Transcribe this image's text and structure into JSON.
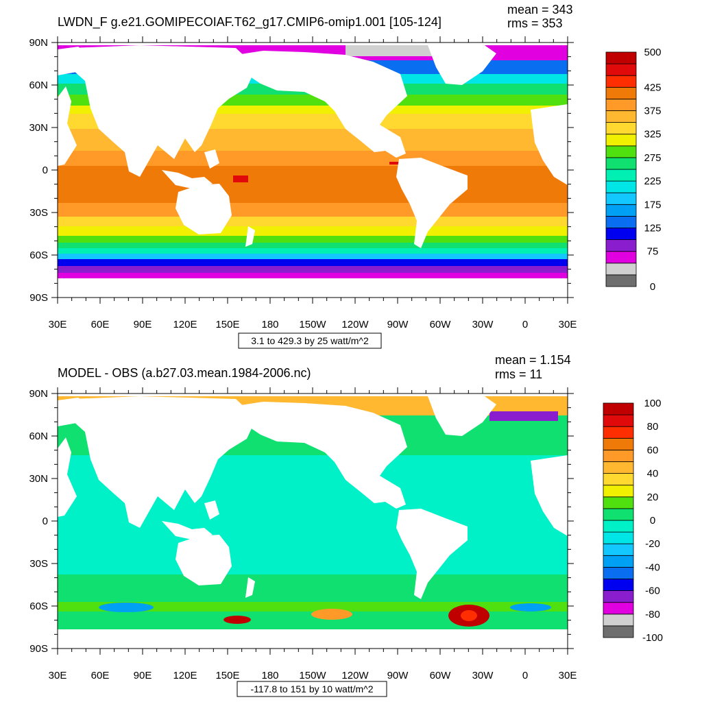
{
  "colors": {
    "ocean_top": [
      "#6e6e6e",
      "#d0d0d0",
      "#e000e0",
      "#8a1ecf",
      "#0000f0",
      "#0a6ef0",
      "#00a0f5",
      "#12c8ff",
      "#00e6e6",
      "#00f0b4",
      "#10e070",
      "#50e010",
      "#f0f000",
      "#ffd830",
      "#ffb830",
      "#ff9a28",
      "#f07a08",
      "#ff2e00",
      "#e00a0a",
      "#c00000"
    ],
    "ocean_bottom": [
      "#6e6e6e",
      "#d0d0d0",
      "#e000e0",
      "#8a1ecf",
      "#0000f0",
      "#0a6ef0",
      "#00a0f5",
      "#12c8ff",
      "#00e6e6",
      "#00f0c8",
      "#10e070",
      "#50e010",
      "#f0f000",
      "#ffd830",
      "#ffb830",
      "#ff9a28",
      "#f07a08",
      "#ff2e00",
      "#e00a0a",
      "#c00000"
    ]
  },
  "panels": [
    {
      "title": "LWDN_F g.e21.GOMIPECOIAF.T62_g17.CMIP6-omip1.001 [105-124]",
      "stats": [
        "mean = 343",
        "rms = 353"
      ],
      "range_note": "3.1 to 429.3 by 25 watt/m^2",
      "lat_ticks": [
        "90N",
        "60N",
        "30N",
        "0",
        "30S",
        "60S",
        "90S"
      ],
      "lon_ticks": [
        "30E",
        "60E",
        "90E",
        "120E",
        "150E",
        "180",
        "150W",
        "120W",
        "90W",
        "60W",
        "30W",
        "0",
        "30E"
      ],
      "colorbar": {
        "labels": [
          "500",
          "425",
          "375",
          "325",
          "275",
          "225",
          "175",
          "125",
          "75",
          "0"
        ],
        "label_positions": [
          20,
          17,
          15,
          13,
          11,
          9,
          7,
          5,
          3,
          0
        ]
      }
    },
    {
      "title": "MODEL - OBS (a.b27.03.mean.1984-2006.nc)",
      "stats": [
        "mean = 1.154",
        "rms = 11"
      ],
      "range_note": "-117.8 to 151 by 10 watt/m^2",
      "lat_ticks": [
        "90N",
        "60N",
        "30N",
        "0",
        "30S",
        "60S",
        "90S"
      ],
      "lon_ticks": [
        "30E",
        "60E",
        "90E",
        "120E",
        "150E",
        "180",
        "150W",
        "120W",
        "90W",
        "60W",
        "30W",
        "0",
        "30E"
      ],
      "colorbar": {
        "labels": [
          "100",
          "80",
          "60",
          "40",
          "20",
          "0",
          "-20",
          "-40",
          "-60",
          "-80",
          "-100"
        ],
        "label_positions": [
          20,
          18,
          16,
          14,
          12,
          10,
          8,
          6,
          4,
          2,
          0
        ]
      }
    }
  ]
}
